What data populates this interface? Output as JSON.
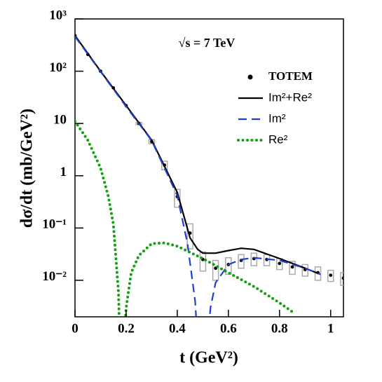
{
  "chart_data": {
    "type": "line",
    "annotation": "√s = 7 TeV",
    "x_label": "t (GeV²)",
    "y_label": "dσ/dt (mb/GeV²)",
    "log_y": true,
    "legend": "upper right",
    "xlim": [
      0,
      1.05
    ],
    "xticks": [
      0,
      0.2,
      0.4,
      0.6,
      0.8,
      1
    ],
    "ylim": [
      0.002,
      1000
    ],
    "yticks": [
      {
        "value": 1000,
        "label": "10³"
      },
      {
        "value": 100,
        "label": "10²"
      },
      10,
      1,
      {
        "value": 0.1,
        "label": "10⁻¹"
      },
      {
        "value": 0.01,
        "label": "10⁻²"
      }
    ],
    "series": [
      {
        "name": "TOTEM",
        "style": "points",
        "color": "#000000",
        "error_color": "#aaaaaa",
        "x": [
          0,
          0.05,
          0.1,
          0.15,
          0.2,
          0.25,
          0.3,
          0.35,
          0.4,
          0.45,
          0.5,
          0.55,
          0.6,
          0.65,
          0.7,
          0.75,
          0.8,
          0.85,
          0.9,
          0.95,
          1,
          1.05
        ],
        "values": [
          480,
          210,
          100,
          48,
          22,
          10,
          4.5,
          1.6,
          0.4,
          0.08,
          0.025,
          0.017,
          0.02,
          0.024,
          0.026,
          0.025,
          0.021,
          0.018,
          0.016,
          0.014,
          0.0125,
          0.011
        ],
        "errors": [
          0,
          0,
          0,
          0,
          0,
          0.5,
          0.4,
          0.3,
          0.15,
          0.04,
          0.01,
          0.007,
          0.007,
          0.007,
          0.007,
          0.006,
          0.005,
          0.005,
          0.004,
          0.004,
          0.003,
          0.003
        ]
      },
      {
        "name": "Im²+Re²",
        "style": "solid",
        "color": "#000000",
        "x": [
          0,
          0.1,
          0.2,
          0.3,
          0.4,
          0.45,
          0.48,
          0.5,
          0.55,
          0.6,
          0.65,
          0.7,
          0.8,
          0.9,
          0.96
        ],
        "values": [
          480,
          100,
          22,
          4.8,
          0.48,
          0.065,
          0.039,
          0.033,
          0.033,
          0.037,
          0.041,
          0.039,
          0.026,
          0.017,
          0.013
        ]
      },
      {
        "name": "Im²",
        "style": "dashed",
        "color": "#1f3fd0",
        "x": [
          0,
          0.1,
          0.2,
          0.3,
          0.4,
          0.44,
          0.47,
          0.49,
          0.51,
          0.53,
          0.55,
          0.6,
          0.65,
          0.7,
          0.8,
          0.9,
          0.96
        ],
        "values": [
          460,
          98,
          21,
          4.7,
          0.42,
          0.05,
          0.004,
          0.0001,
          0.0002,
          0.003,
          0.009,
          0.02,
          0.025,
          0.027,
          0.024,
          0.017,
          0.013
        ]
      },
      {
        "name": "Re²",
        "style": "dotted",
        "color": "#11a011",
        "x": [
          0,
          0.05,
          0.1,
          0.13,
          0.15,
          0.17,
          0.18,
          0.2,
          0.22,
          0.25,
          0.3,
          0.35,
          0.4,
          0.5,
          0.6,
          0.7,
          0.8,
          0.85
        ],
        "values": [
          11,
          4.8,
          1.4,
          0.41,
          0.12,
          0.006,
          0.0001,
          0.003,
          0.014,
          0.03,
          0.05,
          0.052,
          0.045,
          0.026,
          0.014,
          0.0076,
          0.0037,
          0.0025
        ]
      }
    ]
  }
}
